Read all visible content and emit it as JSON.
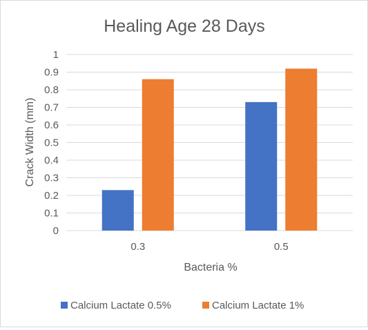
{
  "chart_data": {
    "type": "bar",
    "title": "Healing Age 28 Days",
    "xlabel": "Bacteria %",
    "ylabel": "Crack Width (mm)",
    "categories": [
      "0.3",
      "0.5"
    ],
    "series": [
      {
        "name": "Calcium Lactate 0.5%",
        "values": [
          0.23,
          0.73
        ],
        "color": "#4472C4"
      },
      {
        "name": "Calcium Lactate 1%",
        "values": [
          0.86,
          0.92
        ],
        "color": "#ED7D31"
      }
    ],
    "ylim": [
      0,
      1
    ],
    "yticks": [
      "0",
      "0.1",
      "0.2",
      "0.3",
      "0.4",
      "0.5",
      "0.6",
      "0.7",
      "0.8",
      "0.9",
      "1"
    ],
    "grid": true,
    "legend": "bottom"
  }
}
